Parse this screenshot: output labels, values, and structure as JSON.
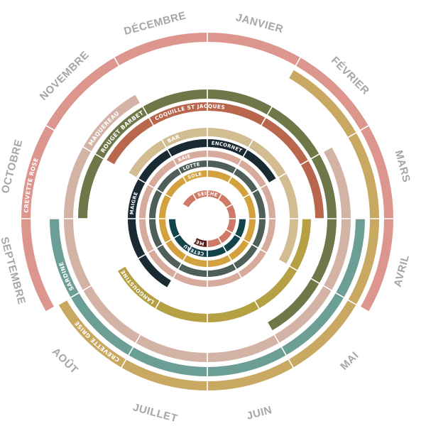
{
  "months": [
    "JANVIER",
    "FÉVRIER",
    "MARS",
    "AVRIL",
    "MAI",
    "JUIN",
    "JUILLET",
    "AOÛT",
    "SEPTEMBRE",
    "OCTOBRE",
    "NOVEMBRE",
    "DÉCEMBRE"
  ],
  "colors": {
    "background": "#ffffff",
    "month_text": "#a6a6a6",
    "divider": "#ffffff"
  },
  "rings": [
    {
      "label": "CREVETTE ROSE",
      "color": "#dd968e",
      "label_month": 10,
      "months": [
        1,
        2,
        3,
        4,
        9,
        10,
        11,
        12
      ]
    },
    {
      "label": "CREVETTE GRISE",
      "color": "#c9a861",
      "label_month": 8,
      "months": [
        2,
        3,
        4,
        5,
        6,
        7,
        8
      ]
    },
    {
      "label": "SARDINE",
      "color": "#6b9e94",
      "label_month": 9,
      "months": [
        4,
        5,
        6,
        7,
        8,
        9
      ]
    },
    {
      "label": "MAQUEREAU",
      "color": "#d3b3a6",
      "label_month": 11,
      "months": [
        3,
        4,
        5,
        6,
        7,
        8,
        9,
        10,
        11
      ]
    },
    {
      "label": "ROUGET BARBET",
      "color": "#6e7747",
      "label_month": 11,
      "months": [
        12,
        1,
        2,
        3,
        4,
        5,
        10,
        11
      ]
    },
    {
      "label": "COQUILLE ST JACQUES",
      "color": "#b8664c",
      "label_month": 12,
      "months": [
        11,
        12,
        1,
        2,
        3
      ]
    },
    {
      "label": "LANGOUSTINE",
      "color": "#b5a044",
      "label_month": 8,
      "months": [
        4,
        5,
        6,
        7,
        8
      ]
    },
    {
      "label": "BAR",
      "color": "#d2bd92",
      "label_month": 12,
      "months": [
        12,
        1,
        2,
        3,
        4,
        11
      ]
    },
    {
      "label": "MAIGRE",
      "color": "#1a2a33",
      "label_month": 10,
      "months": [
        8,
        9,
        10,
        11,
        12,
        1,
        2
      ]
    },
    {
      "label": "ENCORNET",
      "color": "#1a2a33",
      "label_month": 1,
      "months": [
        12,
        1
      ]
    },
    {
      "label": "RAIE",
      "color": "#d6ab9b",
      "label_month": 12,
      "months": [
        1,
        2,
        3,
        4,
        5,
        6,
        7,
        8,
        9,
        10,
        11,
        12
      ]
    },
    {
      "label": "LOTTE",
      "color": "#4d5f58",
      "label_month": 12,
      "months": [
        1,
        2,
        3,
        4,
        5,
        6,
        7,
        8,
        9,
        10,
        11,
        12
      ]
    },
    {
      "label": "SOLE",
      "color": "#d3a23f",
      "label_month": 12,
      "months": [
        10,
        11,
        12,
        1,
        2,
        3,
        4,
        5,
        6,
        7,
        8,
        9
      ]
    },
    {
      "label": "CETEAU",
      "color": "#13434a",
      "label_month": 7,
      "months": [
        4,
        5,
        6,
        7,
        8,
        9
      ]
    },
    {
      "label": "MERLU",
      "color": "#5a1e17",
      "label_month": 7,
      "months": [
        3,
        4,
        5,
        6,
        7
      ]
    },
    {
      "label": "SEICHE",
      "color": "#cf7966",
      "label_month": 12,
      "months": [
        11,
        12,
        1,
        2,
        3,
        4,
        5,
        6
      ]
    }
  ]
}
